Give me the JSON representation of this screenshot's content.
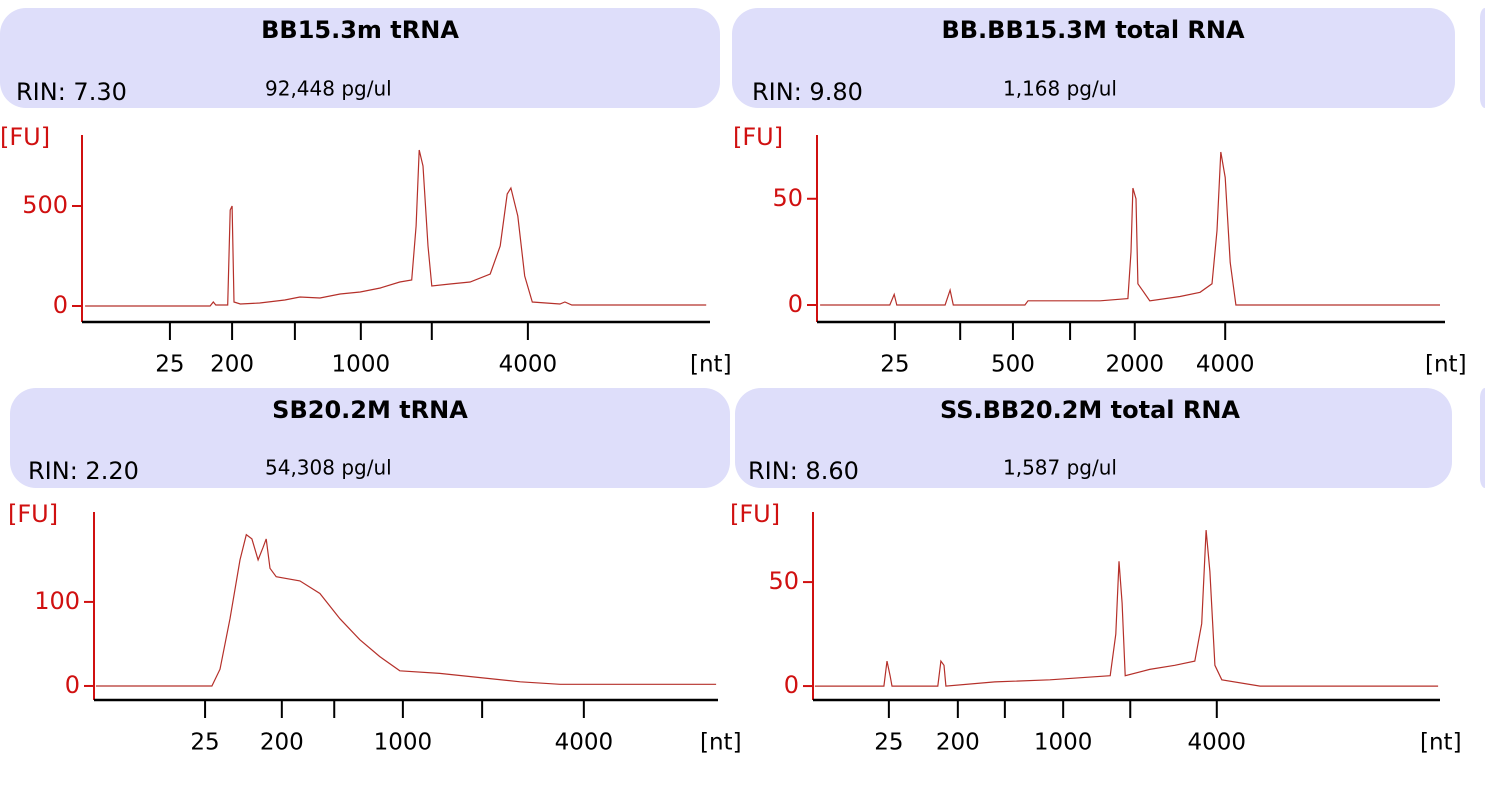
{
  "chart_data": [
    {
      "type": "line",
      "title": "BB15.3m tRNA",
      "rin": "RIN: 7.30",
      "concentration": "92,448 pg/ul",
      "y_label": "[FU]",
      "x_label": "[nt]",
      "color": "#b5302a",
      "ylim": [
        -80,
        855
      ],
      "yticks": [
        0,
        500
      ],
      "xlim": [
        0,
        100
      ],
      "xticks": [
        {
          "value": 14.0,
          "label": "25"
        },
        {
          "value": 23.9,
          "label": "200"
        },
        {
          "value": 33.9,
          "label": null
        },
        {
          "value": 44.4,
          "label": "1000"
        },
        {
          "value": 55.7,
          "label": null
        },
        {
          "value": 71.0,
          "label": "4000"
        }
      ],
      "x": [
        0.5,
        20.4,
        20.9,
        21.3,
        23.2,
        23.6,
        23.9,
        24.2,
        25.2,
        28.3,
        32.3,
        34.7,
        37.9,
        41.1,
        44.3,
        47.5,
        50.6,
        52.5,
        53.2,
        53.7,
        54.3,
        55.1,
        55.7,
        58.6,
        61.8,
        65.0,
        66.6,
        67.7,
        68.3,
        69.4,
        70.5,
        71.7,
        76.1,
        76.9,
        78.0,
        99.4
      ],
      "values": [
        0,
        0,
        20,
        5,
        5,
        480,
        500,
        20,
        10,
        15,
        30,
        45,
        40,
        60,
        70,
        90,
        120,
        130,
        400,
        780,
        700,
        300,
        100,
        110,
        120,
        160,
        300,
        560,
        590,
        450,
        150,
        20,
        10,
        20,
        5,
        5
      ]
    },
    {
      "type": "line",
      "title": "BB.BB15.3M total RNA",
      "rin": "RIN: 9.80",
      "concentration": "1,168 pg/ul",
      "y_label": "[FU]",
      "x_label": "[nt]",
      "color": "#b5302a",
      "ylim": [
        -8,
        80
      ],
      "yticks": [
        0,
        50
      ],
      "xlim": [
        0,
        100
      ],
      "xticks": [
        {
          "value": 12.4,
          "label": "25"
        },
        {
          "value": 22.8,
          "label": null
        },
        {
          "value": 31.2,
          "label": "500"
        },
        {
          "value": 40.3,
          "label": null
        },
        {
          "value": 50.6,
          "label": "2000"
        },
        {
          "value": 65.0,
          "label": "4000"
        }
      ],
      "x": [
        0.5,
        11.6,
        12.3,
        12.7,
        20.4,
        21.2,
        21.7,
        33.1,
        33.6,
        45.1,
        49.5,
        50.0,
        50.3,
        50.8,
        51.1,
        53.0,
        57.8,
        61.0,
        62.9,
        63.7,
        64.3,
        65.0,
        65.8,
        66.7,
        99.2
      ],
      "values": [
        0,
        0,
        5,
        0,
        0,
        7,
        0,
        0,
        2,
        2,
        3,
        25,
        55,
        50,
        10,
        2,
        4,
        6,
        10,
        35,
        72,
        60,
        20,
        0,
        0
      ]
    },
    {
      "type": "line",
      "title": "SB20.2M tRNA",
      "rin": "RIN: 2.20",
      "concentration": "54,308 pg/ul",
      "y_label": "[FU]",
      "x_label": "[nt]",
      "color": "#b5302a",
      "ylim": [
        -16.7,
        207
      ],
      "yticks": [
        0,
        100
      ],
      "xlim": [
        0,
        100
      ],
      "xticks": [
        {
          "value": 17.8,
          "label": "25"
        },
        {
          "value": 30.1,
          "label": "200"
        },
        {
          "value": 38.5,
          "label": null
        },
        {
          "value": 49.5,
          "label": "1000"
        },
        {
          "value": 62.2,
          "label": null
        },
        {
          "value": 78.5,
          "label": "4000"
        }
      ],
      "x": [
        0.3,
        18.9,
        20.2,
        21.8,
        23.4,
        24.4,
        25.3,
        26.3,
        27.1,
        27.6,
        28.2,
        29.2,
        33.0,
        36.2,
        39.4,
        42.6,
        45.8,
        49.0,
        55.4,
        61.9,
        68.3,
        74.7,
        99.7
      ],
      "values": [
        0,
        0,
        20,
        80,
        150,
        180,
        175,
        150,
        165,
        175,
        140,
        130,
        125,
        110,
        80,
        55,
        35,
        18,
        15,
        10,
        5,
        2,
        2
      ]
    },
    {
      "type": "line",
      "title": "SS.BB20.2M total RNA",
      "rin": "RIN: 8.60",
      "concentration": "1,587 pg/ul",
      "y_label": "[FU]",
      "x_label": "[nt]",
      "color": "#b5302a",
      "ylim": [
        -6.7,
        83.7
      ],
      "yticks": [
        0,
        50
      ],
      "xlim": [
        0,
        100
      ],
      "xticks": [
        {
          "value": 12.1,
          "label": "25"
        },
        {
          "value": 23.1,
          "label": "200"
        },
        {
          "value": 30.6,
          "label": null
        },
        {
          "value": 39.9,
          "label": "1000"
        },
        {
          "value": 50.6,
          "label": null
        },
        {
          "value": 64.4,
          "label": "4000"
        }
      ],
      "x": [
        0.3,
        11.3,
        11.8,
        12.3,
        12.6,
        19.9,
        20.4,
        20.9,
        21.2,
        29.0,
        37.8,
        47.4,
        48.3,
        48.8,
        49.3,
        49.8,
        53.7,
        57.7,
        60.9,
        62.0,
        62.7,
        63.3,
        64.1,
        65.2,
        71.3,
        99.7
      ],
      "values": [
        0,
        0,
        12,
        5,
        0,
        0,
        12,
        10,
        0,
        2,
        3,
        5,
        25,
        60,
        40,
        5,
        8,
        10,
        12,
        30,
        75,
        55,
        10,
        3,
        0,
        0
      ]
    }
  ]
}
